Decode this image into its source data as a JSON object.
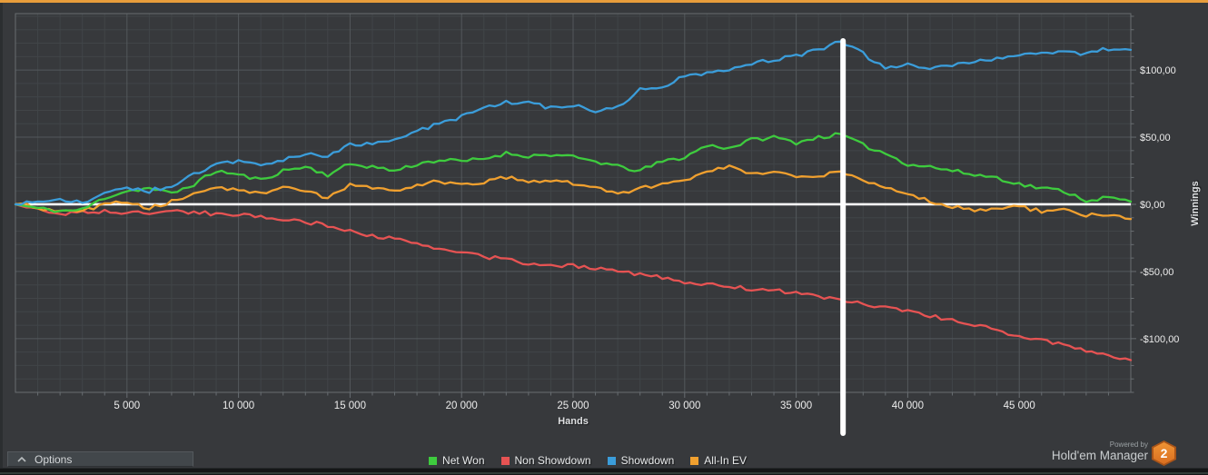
{
  "footer": {
    "options_label": "Options",
    "powered_by": "Powered by",
    "brand_name": "Hold'em Manager",
    "brand_badge": "2"
  },
  "icons": {
    "options_chevron": "chevron-up"
  },
  "colors": {
    "background": "#37393c",
    "plot_border": "#686d71",
    "grid_minor": "#414548",
    "grid_major": "#53585b",
    "tick_label": "#ececec",
    "zero_line": "#ffffff",
    "cursor_line": "#ffffff",
    "top_accent": "#e89d3b"
  },
  "chart_data": {
    "type": "line",
    "title": "",
    "xlabel": "Hands",
    "ylabel": "Winnings",
    "xlim": [
      0,
      50000
    ],
    "ylim": [
      -140,
      142
    ],
    "grid": true,
    "legend_position": "bottom-center",
    "x_minor_step": 1000,
    "y_minor_step": 10,
    "x_major_ticks": [
      5000,
      10000,
      15000,
      20000,
      25000,
      30000,
      35000,
      40000,
      45000
    ],
    "x_major_labels": [
      "5 000",
      "10 000",
      "15 000",
      "20 000",
      "25 000",
      "30 000",
      "35 000",
      "40 000",
      "45 000"
    ],
    "y_major_ticks": [
      100,
      50,
      0,
      -50,
      -100
    ],
    "y_major_labels": [
      "$100,00",
      "$50,00",
      "$0,00",
      "-$50,00",
      "-$100,00"
    ],
    "zero_line": 0,
    "cursor_x": 37100,
    "x_start": 0,
    "x_step": 1000,
    "series": [
      {
        "name": "Net Won",
        "color": "#3ecb3e",
        "values": [
          0,
          -3,
          -5,
          -4,
          5,
          10,
          12,
          8,
          15,
          25,
          22,
          18,
          25,
          28,
          22,
          30,
          28,
          25,
          30,
          33,
          32,
          34,
          38,
          36,
          37,
          35,
          32,
          28,
          25,
          32,
          35,
          44,
          42,
          48,
          50,
          46,
          50,
          52,
          44,
          38,
          30,
          28,
          25,
          22,
          20,
          15,
          12,
          10,
          3,
          5,
          2
        ]
      },
      {
        "name": "Non Showdown",
        "color": "#e65353",
        "values": [
          0,
          -4,
          -7,
          -6,
          -5,
          -7,
          -6,
          -5,
          -6,
          -7,
          -8,
          -9,
          -11,
          -13,
          -16,
          -20,
          -23,
          -26,
          -30,
          -33,
          -36,
          -39,
          -41,
          -44,
          -45,
          -46,
          -47,
          -49,
          -52,
          -55,
          -58,
          -60,
          -61,
          -63,
          -64,
          -66,
          -69,
          -71,
          -74,
          -77,
          -80,
          -83,
          -86,
          -90,
          -94,
          -98,
          -101,
          -105,
          -109,
          -112,
          -116
        ]
      },
      {
        "name": "Showdown",
        "color": "#3b9dda",
        "values": [
          0,
          2,
          3,
          1,
          8,
          12,
          10,
          14,
          22,
          30,
          32,
          28,
          33,
          38,
          36,
          44,
          46,
          49,
          55,
          60,
          65,
          72,
          76,
          75,
          72,
          74,
          70,
          72,
          85,
          88,
          95,
          98,
          100,
          105,
          108,
          110,
          115,
          122,
          112,
          101,
          104,
          102,
          104,
          106,
          108,
          110,
          113,
          114,
          112,
          116,
          115
        ]
      },
      {
        "name": "All-In EV",
        "color": "#f0a02f",
        "values": [
          0,
          -2,
          -6,
          -5,
          0,
          2,
          -3,
          2,
          8,
          12,
          10,
          8,
          12,
          10,
          5,
          14,
          12,
          10,
          15,
          17,
          14,
          16,
          20,
          17,
          18,
          16,
          14,
          8,
          12,
          15,
          18,
          25,
          28,
          22,
          25,
          20,
          22,
          23,
          18,
          12,
          8,
          2,
          -2,
          -4,
          -3,
          -2,
          -5,
          -4,
          -8,
          -7,
          -11
        ]
      }
    ],
    "legend": [
      "Net Won",
      "Non Showdown",
      "Showdown",
      "All-In EV"
    ]
  }
}
